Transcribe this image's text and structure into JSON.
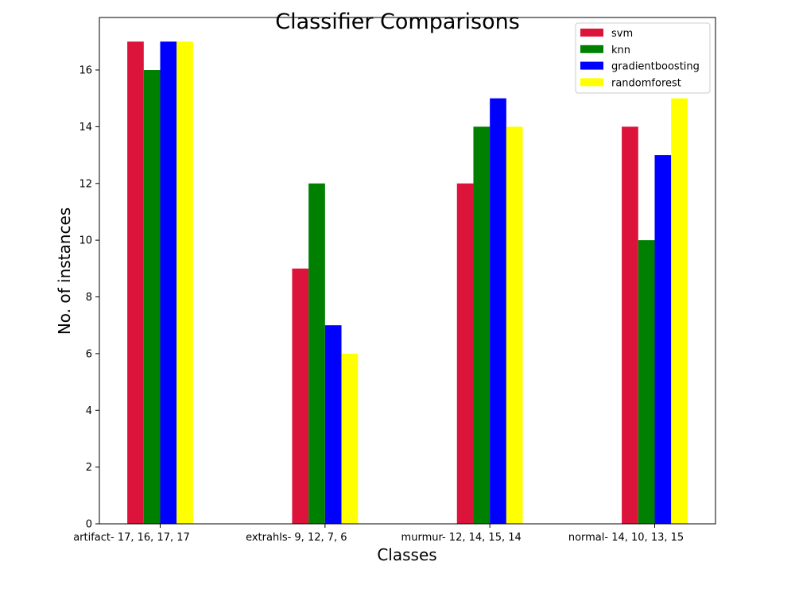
{
  "chart_data": {
    "type": "bar",
    "title": "Classifier Comparisons",
    "xlabel": "Classes",
    "ylabel": "No. of instances",
    "categories": [
      "artifact- 17, 16, 17, 17",
      "extrahls- 9, 12, 7, 6",
      "murmur- 12, 14, 15, 14",
      "normal- 14, 10, 13, 15"
    ],
    "series": [
      {
        "name": "svm",
        "color": "#dc143c",
        "values": [
          17,
          9,
          12,
          14
        ]
      },
      {
        "name": "knn",
        "color": "#008000",
        "values": [
          16,
          12,
          14,
          10
        ]
      },
      {
        "name": "gradientboosting",
        "color": "#0000ff",
        "values": [
          17,
          7,
          15,
          13
        ]
      },
      {
        "name": "randomforest",
        "color": "#ffff00",
        "values": [
          17,
          6,
          14,
          15
        ]
      }
    ],
    "yticks": [
      0,
      2,
      4,
      6,
      8,
      10,
      12,
      14,
      16
    ],
    "ylim": [
      0,
      17.85
    ],
    "grid": false,
    "legend_position": "top-right"
  }
}
